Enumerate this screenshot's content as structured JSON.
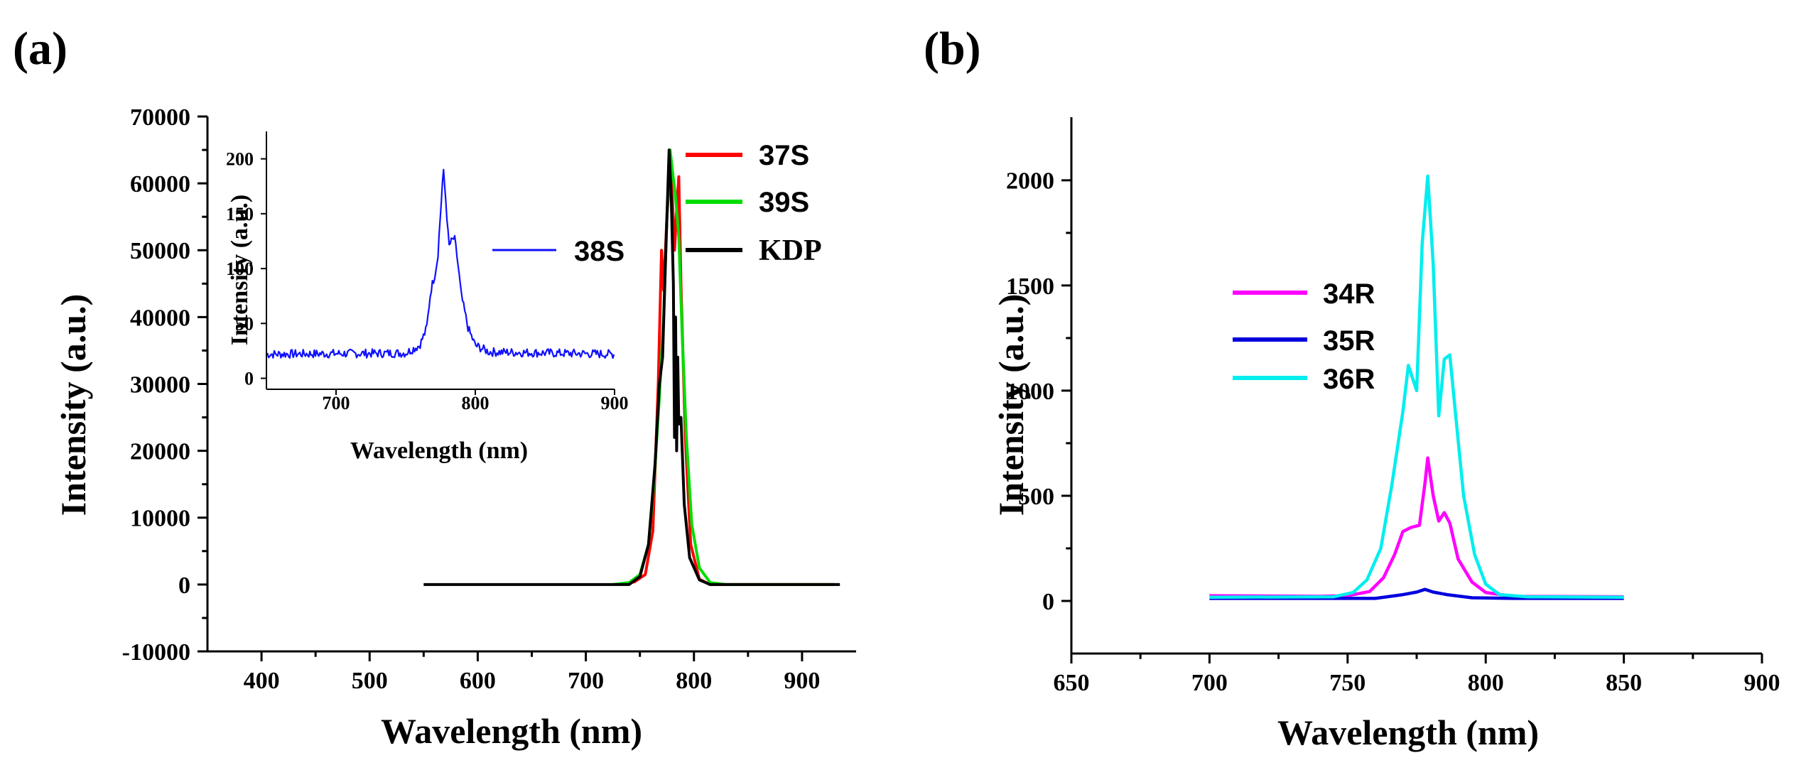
{
  "panels": [
    {
      "panel_label": "(a)",
      "chart_data": {
        "type": "line",
        "xlabel": "Wavelength (nm)",
        "ylabel": "Intensity (a.u.)",
        "xlim": [
          350,
          950
        ],
        "ylim": [
          -10000,
          70000
        ],
        "xticks": [
          400,
          500,
          600,
          700,
          800,
          900
        ],
        "yticks": [
          -10000,
          0,
          10000,
          20000,
          30000,
          40000,
          50000,
          60000,
          70000
        ],
        "grid": false,
        "legend": {
          "placement": "top-right",
          "entries": [
            "37S",
            "39S",
            "KDP"
          ]
        },
        "series": [
          {
            "name": "37S",
            "color": "#ff0000",
            "points": [
              [
                730,
                0
              ],
              [
                745,
                400
              ],
              [
                755,
                1500
              ],
              [
                762,
                8000
              ],
              [
                767,
                30000
              ],
              [
                770,
                50000
              ],
              [
                772,
                44000
              ],
              [
                775,
                55000
              ],
              [
                778,
                62000
              ],
              [
                780,
                58000
              ],
              [
                782,
                50000
              ],
              [
                784,
                56000
              ],
              [
                786,
                61000
              ],
              [
                788,
                45000
              ],
              [
                792,
                22000
              ],
              [
                797,
                6000
              ],
              [
                805,
                800
              ],
              [
                815,
                0
              ],
              [
                930,
                0
              ]
            ]
          },
          {
            "name": "39S",
            "color": "#00dd00",
            "points": [
              [
                725,
                0
              ],
              [
                740,
                300
              ],
              [
                750,
                1500
              ],
              [
                758,
                6000
              ],
              [
                763,
                15000
              ],
              [
                768,
                28000
              ],
              [
                772,
                40000
              ],
              [
                775,
                55000
              ],
              [
                778,
                65000
              ],
              [
                780,
                62000
              ],
              [
                783,
                58000
              ],
              [
                786,
                52000
              ],
              [
                789,
                38000
              ],
              [
                793,
                22000
              ],
              [
                798,
                9000
              ],
              [
                805,
                2500
              ],
              [
                815,
                300
              ],
              [
                830,
                0
              ],
              [
                930,
                0
              ]
            ]
          },
          {
            "name": "KDP",
            "color": "#000000",
            "points": [
              [
                550,
                0
              ],
              [
                740,
                0
              ],
              [
                750,
                1200
              ],
              [
                758,
                6000
              ],
              [
                764,
                18000
              ],
              [
                768,
                30000
              ],
              [
                771,
                34000
              ],
              [
                774,
                50000
              ],
              [
                777,
                65000
              ],
              [
                779,
                58000
              ],
              [
                781,
                45000
              ],
              [
                782,
                22000
              ],
              [
                783,
                40000
              ],
              [
                784,
                20000
              ],
              [
                785,
                34000
              ],
              [
                786,
                24000
              ],
              [
                788,
                25000
              ],
              [
                791,
                12000
              ],
              [
                796,
                4000
              ],
              [
                805,
                700
              ],
              [
                815,
                0
              ],
              [
                935,
                0
              ]
            ]
          }
        ],
        "inset": {
          "type": "line",
          "xlabel": "Wavelength (nm)",
          "ylabel": "Intensity (a.u.)",
          "xlim": [
            650,
            900
          ],
          "ylim": [
            -10,
            225
          ],
          "xticks": [
            700,
            800,
            900
          ],
          "xtick_labels": [
            "700",
            "800",
            "900"
          ],
          "yticks": [
            0,
            50,
            100,
            150,
            200
          ],
          "legend": {
            "placement": "right",
            "entries": [
              "38S"
            ]
          },
          "series": [
            {
              "name": "38S",
              "color": "#1010ff",
              "baseline": 22,
              "noise": 4,
              "points": [
                [
                  650,
                  22
                ],
                [
                  750,
                  23
                ],
                [
                  760,
                  30
                ],
                [
                  765,
                  45
                ],
                [
                  768,
                  80
                ],
                [
                  771,
                  95
                ],
                [
                  773,
                  110
                ],
                [
                  775,
                  150
                ],
                [
                  777,
                  190
                ],
                [
                  779,
                  160
                ],
                [
                  781,
                  120
                ],
                [
                  783,
                  125
                ],
                [
                  785,
                  128
                ],
                [
                  787,
                  110
                ],
                [
                  790,
                  75
                ],
                [
                  795,
                  45
                ],
                [
                  800,
                  30
                ],
                [
                  810,
                  24
                ],
                [
                  900,
                  22
                ]
              ]
            }
          ]
        }
      }
    },
    {
      "panel_label": "(b)",
      "chart_data": {
        "type": "line",
        "xlabel": "Wavelength (nm)",
        "ylabel": "Intensity (a.u.)",
        "xlim": [
          650,
          900
        ],
        "ylim": [
          -250,
          2300
        ],
        "xticks": [
          650,
          700,
          750,
          800,
          850,
          900
        ],
        "yticks": [
          0,
          500,
          1000,
          1500,
          2000
        ],
        "grid": false,
        "legend": {
          "placement": "center-left",
          "entries": [
            "34R",
            "35R",
            "36R"
          ]
        },
        "series": [
          {
            "name": "34R",
            "color": "#ff00ff",
            "points": [
              [
                700,
                25
              ],
              [
                740,
                22
              ],
              [
                750,
                25
              ],
              [
                758,
                45
              ],
              [
                763,
                110
              ],
              [
                767,
                220
              ],
              [
                770,
                330
              ],
              [
                773,
                350
              ],
              [
                776,
                360
              ],
              [
                778,
                560
              ],
              [
                779,
                680
              ],
              [
                781,
                500
              ],
              [
                783,
                380
              ],
              [
                785,
                420
              ],
              [
                787,
                370
              ],
              [
                790,
                200
              ],
              [
                795,
                90
              ],
              [
                800,
                40
              ],
              [
                810,
                22
              ],
              [
                850,
                20
              ]
            ]
          },
          {
            "name": "35R",
            "color": "#0000dd",
            "points": [
              [
                700,
                12
              ],
              [
                760,
                12
              ],
              [
                770,
                30
              ],
              [
                775,
                42
              ],
              [
                778,
                55
              ],
              [
                781,
                42
              ],
              [
                786,
                30
              ],
              [
                795,
                15
              ],
              [
                810,
                12
              ],
              [
                850,
                12
              ]
            ]
          },
          {
            "name": "36R",
            "color": "#00eeee",
            "points": [
              [
                700,
                18
              ],
              [
                745,
                20
              ],
              [
                752,
                40
              ],
              [
                757,
                100
              ],
              [
                762,
                250
              ],
              [
                766,
                550
              ],
              [
                770,
                900
              ],
              [
                772,
                1120
              ],
              [
                775,
                1000
              ],
              [
                777,
                1700
              ],
              [
                779,
                2020
              ],
              [
                781,
                1600
              ],
              [
                783,
                880
              ],
              [
                785,
                1150
              ],
              [
                787,
                1170
              ],
              [
                789,
                900
              ],
              [
                792,
                500
              ],
              [
                796,
                220
              ],
              [
                800,
                80
              ],
              [
                805,
                30
              ],
              [
                815,
                20
              ],
              [
                850,
                18
              ]
            ]
          }
        ]
      }
    }
  ]
}
